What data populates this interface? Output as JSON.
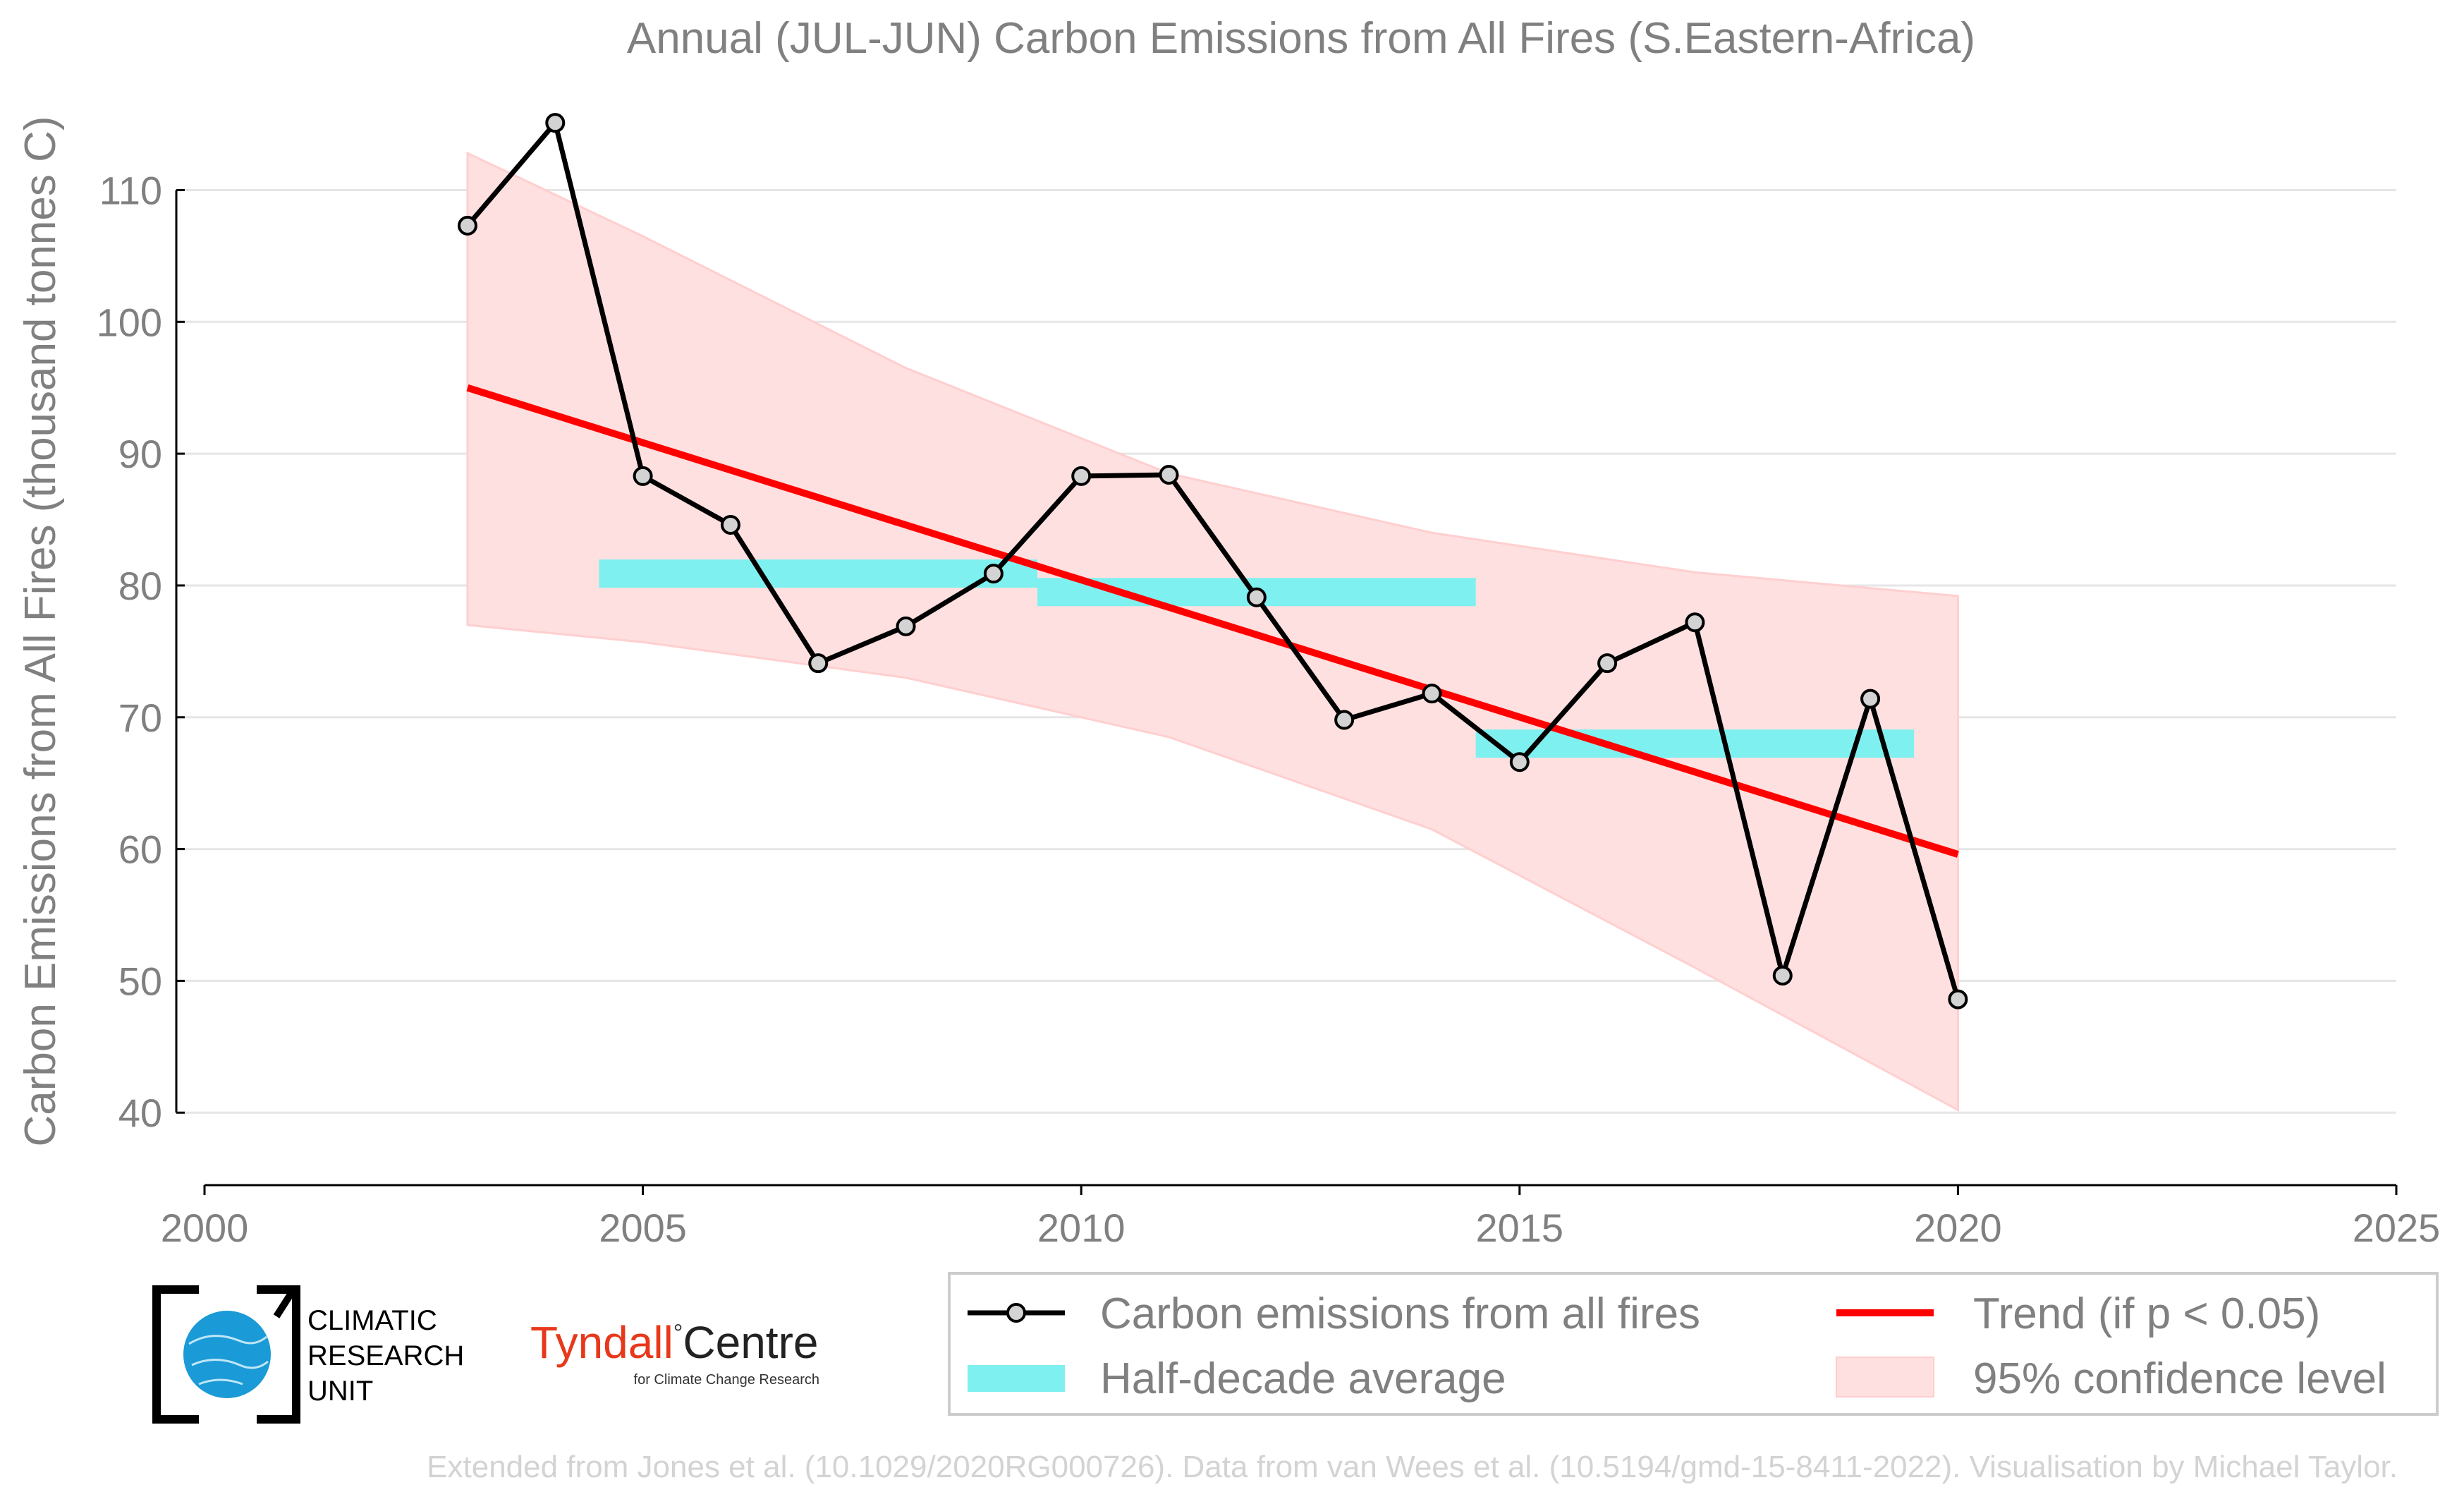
{
  "chart_data": {
    "type": "line",
    "title": "Annual (JUL-JUN) Carbon Emissions from All Fires (S.Eastern-Africa)",
    "xlabel": "",
    "ylabel": "Carbon Emissions from All Fires (thousand tonnes C)",
    "xlim": [
      2000,
      2025
    ],
    "ylim": [
      34.5,
      118
    ],
    "xticks": [
      2000,
      2005,
      2010,
      2015,
      2020,
      2025
    ],
    "yticks": [
      40,
      50,
      60,
      70,
      80,
      90,
      100,
      110
    ],
    "grid": "horizontal",
    "legend_position": "bottom-right, below plot",
    "series": [
      {
        "name": "Carbon emissions from all fires",
        "color": "#000000",
        "marker_color": "#d3d3d3",
        "x": [
          2003,
          2004,
          2005,
          2006,
          2007,
          2008,
          2009,
          2010,
          2011,
          2012,
          2013,
          2014,
          2015,
          2016,
          2017,
          2018,
          2019,
          2020
        ],
        "y": [
          107.3,
          115.1,
          88.3,
          84.6,
          74.1,
          76.9,
          80.9,
          88.3,
          88.4,
          79.1,
          69.8,
          71.8,
          66.6,
          74.1,
          77.2,
          50.4,
          71.4,
          48.6
        ]
      }
    ],
    "half_decade_average": {
      "name": "Half-decade average",
      "color": "#7ff0f0",
      "segments": [
        {
          "x_start": 2004.5,
          "x_end": 2009.5,
          "value": 80.9
        },
        {
          "x_start": 2009.5,
          "x_end": 2014.5,
          "value": 79.5
        },
        {
          "x_start": 2014.5,
          "x_end": 2019.5,
          "value": 68.0
        }
      ]
    },
    "trend": {
      "name": "Trend (if p < 0.05)",
      "color": "#ff0000",
      "x": [
        2003,
        2020
      ],
      "y": [
        95.0,
        59.6
      ]
    },
    "confidence_band": {
      "name": "95% confidence level",
      "color": "#ffe0e0",
      "x": [
        2003,
        2005,
        2008,
        2011,
        2014,
        2017,
        2020
      ],
      "upper": [
        112.8,
        106.5,
        96.5,
        88.5,
        84.0,
        81.0,
        79.2
      ],
      "lower": [
        77.0,
        75.7,
        73.0,
        68.5,
        61.5,
        51.0,
        40.2
      ]
    }
  },
  "legend": {
    "items": [
      {
        "label": "Carbon emissions from all fires"
      },
      {
        "label": "Trend (if p < 0.05)"
      },
      {
        "label": "Half-decade average"
      },
      {
        "label": "95% confidence level"
      }
    ]
  },
  "logos": {
    "cru_lines": [
      "CLIMATIC",
      "RESEARCH",
      "UNIT"
    ],
    "tyndall_name": "Tyndall",
    "tyndall_degree": "°",
    "tyndall_centre": "Centre",
    "tyndall_sub": "for Climate Change Research",
    "tyndall_color": "#e8381b",
    "cru_globe_color": "#1a9ad6"
  },
  "credit": "Extended from Jones et al. (10.1029/2020RG000726). Data from van Wees et al. (10.5194/gmd-15-8411-2022). Visualisation by Michael Taylor."
}
